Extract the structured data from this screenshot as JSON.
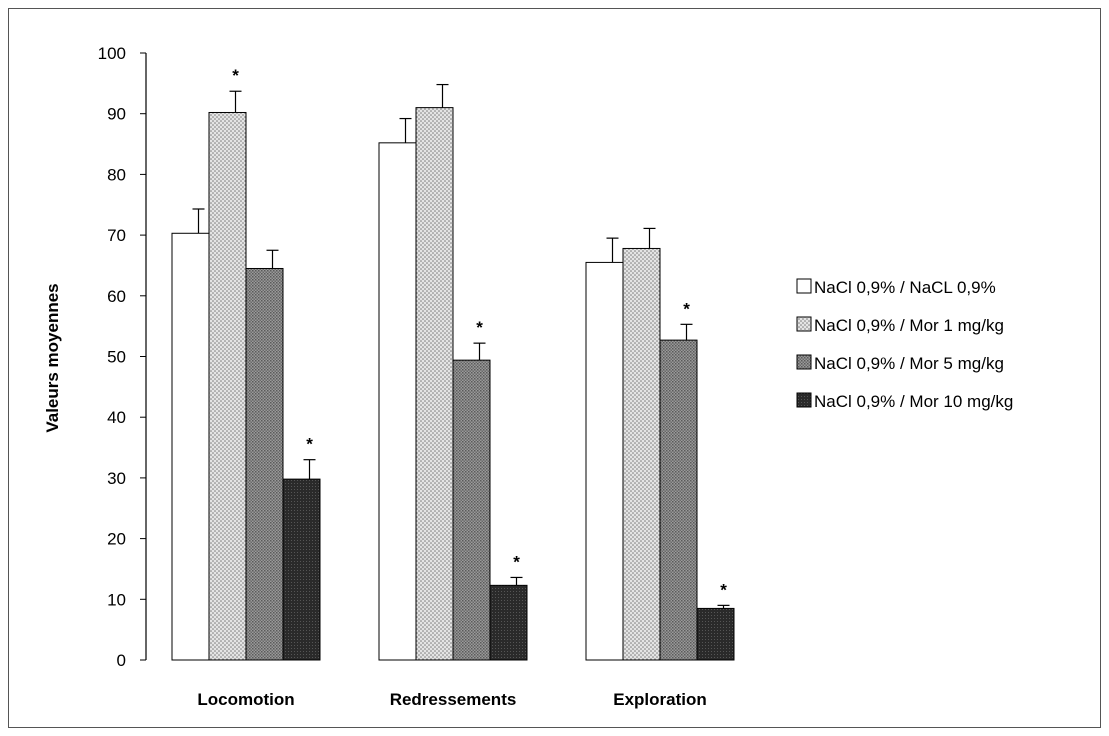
{
  "chart_data": {
    "type": "bar",
    "ylabel": "Valeurs moyennes",
    "ylim": [
      0,
      100
    ],
    "yticks": [
      0,
      10,
      20,
      30,
      40,
      50,
      60,
      70,
      80,
      90,
      100
    ],
    "grid": false,
    "legend_position": "right",
    "categories": [
      "Locomotion",
      "Redressements",
      "Exploration"
    ],
    "series": [
      {
        "name": "NaCl 0,9% / NaCL 0,9%",
        "pattern": "white",
        "values": [
          70.3,
          85.2,
          65.5
        ],
        "errors": [
          4.0,
          4.0,
          4.0
        ],
        "significant": [
          false,
          false,
          false
        ]
      },
      {
        "name": "NaCl 0,9% / Mor 1 mg/kg",
        "pattern": "dots",
        "values": [
          90.2,
          91.0,
          67.8
        ],
        "errors": [
          3.5,
          3.8,
          3.3
        ],
        "significant": [
          true,
          false,
          false
        ]
      },
      {
        "name": "NaCl 0,9% / Mor 5 mg/kg",
        "pattern": "dense",
        "values": [
          64.5,
          49.4,
          52.7
        ],
        "errors": [
          3.0,
          2.8,
          2.6
        ],
        "significant": [
          false,
          true,
          true
        ]
      },
      {
        "name": "NaCl 0,9% / Mor 10 mg/kg",
        "pattern": "dark",
        "values": [
          29.8,
          12.3,
          8.5
        ],
        "errors": [
          3.2,
          1.3,
          0.5
        ],
        "significant": [
          true,
          true,
          true
        ]
      }
    ],
    "significance_marker": "*"
  }
}
